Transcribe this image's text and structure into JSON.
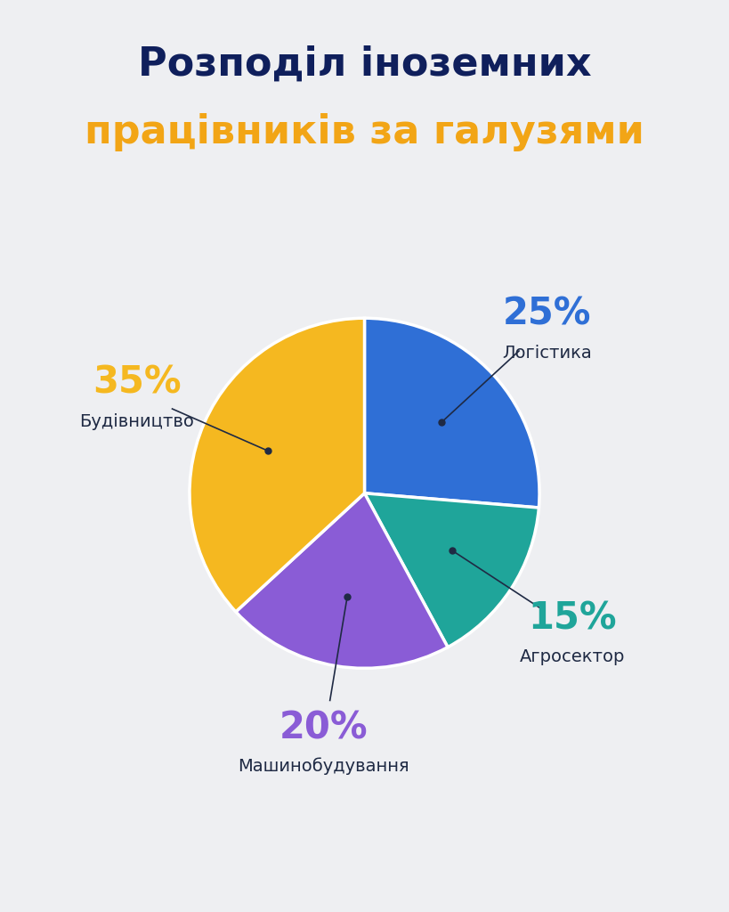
{
  "chart_data": {
    "type": "pie",
    "title": "Розподіл іноземних\nпрацівників за галузями",
    "categories": [
      "Логістика",
      "Агросектор",
      "Машинобудування",
      "Будівництво"
    ],
    "values": [
      25,
      15,
      20,
      35
    ],
    "value_labels": [
      "25%",
      "15%",
      "20%",
      "35%"
    ],
    "colors": [
      "#2F6FD6",
      "#1FA59A",
      "#8A5CD6",
      "#F5B820"
    ],
    "data_labels": true
  }
}
